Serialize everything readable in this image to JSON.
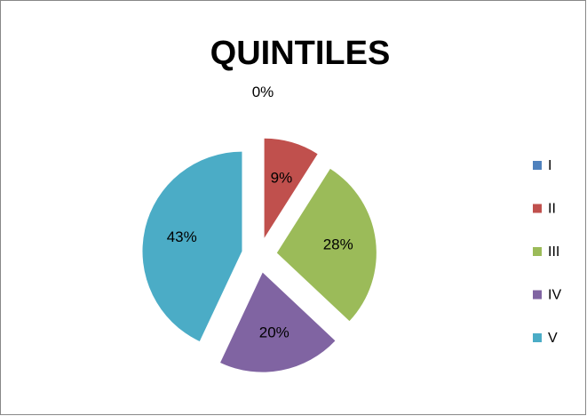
{
  "chart_data": {
    "type": "pie",
    "title": "QUINTILES",
    "categories": [
      "I",
      "II",
      "III",
      "IV",
      "V"
    ],
    "values": [
      0,
      9,
      28,
      20,
      43
    ],
    "value_labels": [
      "0%",
      "9%",
      "28%",
      "20%",
      "43%"
    ],
    "colors": [
      "#4f81bd",
      "#c0504d",
      "#9bbb59",
      "#8064a2",
      "#4bacc6"
    ],
    "legend": "right"
  }
}
